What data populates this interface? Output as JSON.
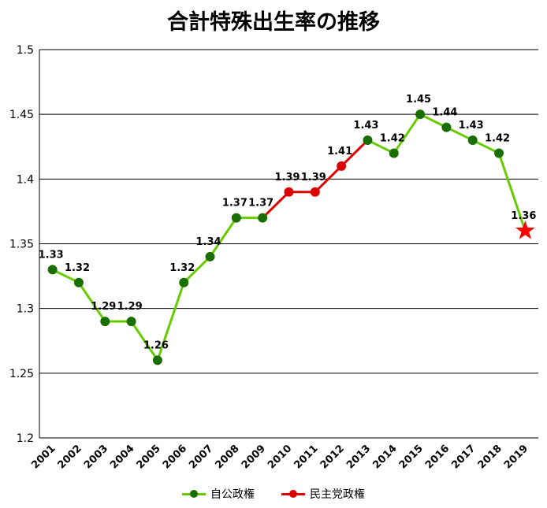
{
  "chart_data": {
    "type": "line",
    "title": "合計特殊出生率の推移",
    "xlabel": "",
    "ylabel": "",
    "ylim": [
      1.2,
      1.5
    ],
    "yticks": [
      "1.2",
      "1.25",
      "1.3",
      "1.35",
      "1.4",
      "1.45",
      "1.5"
    ],
    "ytick_values": [
      1.2,
      1.25,
      1.3,
      1.35,
      1.4,
      1.45,
      1.5
    ],
    "grid": true,
    "legend_position": "bottom-center",
    "x": [
      "2001",
      "2002",
      "2003",
      "2004",
      "2005",
      "2006",
      "2007",
      "2008",
      "2009",
      "2010",
      "2011",
      "2012",
      "2013",
      "2014",
      "2015",
      "2016",
      "2017",
      "2018",
      "2019"
    ],
    "values": [
      1.33,
      1.32,
      1.29,
      1.29,
      1.26,
      1.32,
      1.34,
      1.37,
      1.37,
      1.39,
      1.39,
      1.41,
      1.43,
      1.42,
      1.45,
      1.44,
      1.43,
      1.42,
      1.36
    ],
    "data_labels": [
      "1.33",
      "1.32",
      "1.29",
      "1.29",
      "1.26",
      "1.32",
      "1.34",
      "1.37",
      "1.37",
      "1.39",
      "1.39",
      "1.41",
      "1.43",
      "1.42",
      "1.45",
      "1.44",
      "1.43",
      "1.42",
      "1.36"
    ],
    "series": [
      {
        "name": "自公政権",
        "color": "#66cc00",
        "marker_color": "#1a6e00",
        "x": [
          "2001",
          "2002",
          "2003",
          "2004",
          "2005",
          "2006",
          "2007",
          "2008",
          "2009"
        ],
        "values": [
          1.33,
          1.32,
          1.29,
          1.29,
          1.26,
          1.32,
          1.34,
          1.37,
          1.37
        ]
      },
      {
        "name": "民主党政権",
        "color": "#dd0000",
        "marker_color": "#dd0000",
        "x": [
          "2009",
          "2010",
          "2011",
          "2012",
          "2013"
        ],
        "values": [
          1.37,
          1.39,
          1.39,
          1.41,
          1.43
        ]
      },
      {
        "name": "自公政権",
        "color": "#66cc00",
        "marker_color": "#1a6e00",
        "x": [
          "2013",
          "2014",
          "2015",
          "2016",
          "2017",
          "2018",
          "2019"
        ],
        "values": [
          1.43,
          1.42,
          1.45,
          1.44,
          1.43,
          1.42,
          1.36
        ]
      }
    ],
    "legend": [
      {
        "name": "自公政権",
        "color": "#66cc00",
        "marker_color": "#1a6e00"
      },
      {
        "name": "民主党政権",
        "color": "#dd0000",
        "marker_color": "#dd0000"
      }
    ],
    "highlight": {
      "x": "2019",
      "value": 1.36,
      "marker": "star-icon",
      "color": "#ff0000"
    },
    "point_markers": {
      "2001": "#1a6e00",
      "2002": "#1a6e00",
      "2003": "#1a6e00",
      "2004": "#1a6e00",
      "2005": "#1a6e00",
      "2006": "#1a6e00",
      "2007": "#1a6e00",
      "2008": "#1a6e00",
      "2009": "#1a6e00",
      "2010": "#dd0000",
      "2011": "#dd0000",
      "2012": "#dd0000",
      "2013": "#1a6e00",
      "2014": "#1a6e00",
      "2015": "#1a6e00",
      "2016": "#1a6e00",
      "2017": "#1a6e00",
      "2018": "#1a6e00"
    }
  }
}
